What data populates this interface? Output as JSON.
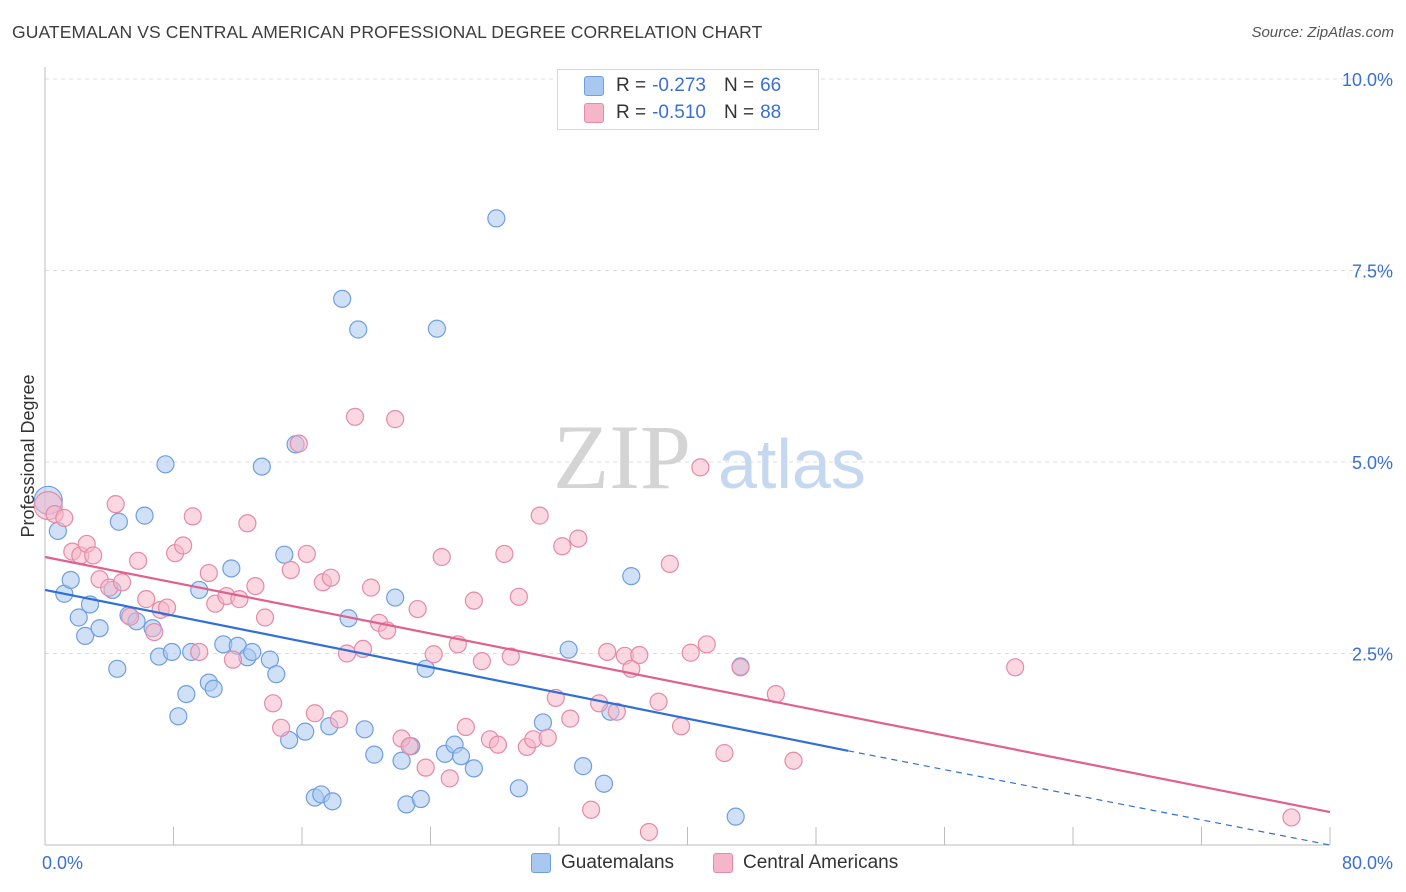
{
  "header": {
    "title": "GUATEMALAN VS CENTRAL AMERICAN PROFESSIONAL DEGREE CORRELATION CHART",
    "source": "Source: ZipAtlas.com"
  },
  "watermark": {
    "part1": "ZIP",
    "part2": "atlas"
  },
  "legend": {
    "rows": [
      {
        "r_label": "R =",
        "r_value": "-0.273",
        "n_label": "N =",
        "n_value": "66"
      },
      {
        "r_label": "R =",
        "r_value": "-0.510",
        "n_label": "N =",
        "n_value": "88"
      }
    ]
  },
  "bottom_legend": {
    "items": [
      "Guatemalans",
      "Central Americans"
    ]
  },
  "colors": {
    "blue_fill": "#a9c8f0",
    "blue_stroke": "#6f9fe0",
    "blue_line": "#2f6fd6",
    "pink_fill": "#f5b6c9",
    "pink_stroke": "#e58aa8",
    "pink_line": "#e0608e",
    "tick_label": "#3a6fd8",
    "grid": "#dcdcdc"
  },
  "chart_data": {
    "type": "scatter",
    "title": "GUATEMALAN VS CENTRAL AMERICAN PROFESSIONAL DEGREE CORRELATION CHART",
    "xlabel": "",
    "ylabel": "Professional Degree",
    "xlim": [
      0,
      80
    ],
    "ylim": [
      0,
      10
    ],
    "x_tick_labels": [
      "0.0%",
      "80.0%"
    ],
    "y_ticks": [
      2.5,
      5.0,
      7.5,
      10.0
    ],
    "y_tick_labels": [
      "2.5%",
      "5.0%",
      "7.5%",
      "10.0%"
    ],
    "grid": true,
    "legend_position": "top-center",
    "series": [
      {
        "name": "Guatemalans",
        "r": -0.273,
        "n": 66,
        "trend": {
          "x0": 0,
          "y0": 3.33,
          "x1": 50,
          "y1": 1.23,
          "dashed_to": 80,
          "dashed_y": 0.0
        },
        "points": [
          [
            0.2,
            4.5
          ],
          [
            0.8,
            4.1
          ],
          [
            1.2,
            3.28
          ],
          [
            1.6,
            3.46
          ],
          [
            2.1,
            2.97
          ],
          [
            2.5,
            2.73
          ],
          [
            2.8,
            3.14
          ],
          [
            3.4,
            2.83
          ],
          [
            4.2,
            3.33
          ],
          [
            4.5,
            2.3
          ],
          [
            4.6,
            4.22
          ],
          [
            5.2,
            3.0
          ],
          [
            5.7,
            2.92
          ],
          [
            6.2,
            4.3
          ],
          [
            6.7,
            2.83
          ],
          [
            7.1,
            2.46
          ],
          [
            7.5,
            4.97
          ],
          [
            7.9,
            2.52
          ],
          [
            8.3,
            1.68
          ],
          [
            8.8,
            1.97
          ],
          [
            9.1,
            2.52
          ],
          [
            9.6,
            3.33
          ],
          [
            10.2,
            2.12
          ],
          [
            10.5,
            2.04
          ],
          [
            11.1,
            2.62
          ],
          [
            11.6,
            3.61
          ],
          [
            12.0,
            2.6
          ],
          [
            12.6,
            2.45
          ],
          [
            12.9,
            2.52
          ],
          [
            13.5,
            4.94
          ],
          [
            14.0,
            2.42
          ],
          [
            14.4,
            2.23
          ],
          [
            14.9,
            3.79
          ],
          [
            15.2,
            1.37
          ],
          [
            15.6,
            5.23
          ],
          [
            16.2,
            1.48
          ],
          [
            16.8,
            0.62
          ],
          [
            17.2,
            0.66
          ],
          [
            17.7,
            1.55
          ],
          [
            17.9,
            0.57
          ],
          [
            18.5,
            7.13
          ],
          [
            18.9,
            2.96
          ],
          [
            19.5,
            6.73
          ],
          [
            19.9,
            1.51
          ],
          [
            20.5,
            1.18
          ],
          [
            21.8,
            3.23
          ],
          [
            22.2,
            1.1
          ],
          [
            22.5,
            0.53
          ],
          [
            22.8,
            1.29
          ],
          [
            23.4,
            0.6
          ],
          [
            23.7,
            2.3
          ],
          [
            24.4,
            6.74
          ],
          [
            24.9,
            1.19
          ],
          [
            25.5,
            1.31
          ],
          [
            25.9,
            1.16
          ],
          [
            26.7,
            1.0
          ],
          [
            28.1,
            8.18
          ],
          [
            29.5,
            0.74
          ],
          [
            31.0,
            1.6
          ],
          [
            32.6,
            2.55
          ],
          [
            33.5,
            1.03
          ],
          [
            34.8,
            0.8
          ],
          [
            35.2,
            1.74
          ],
          [
            36.5,
            3.51
          ],
          [
            43.0,
            0.37
          ],
          [
            43.3,
            2.33
          ]
        ]
      },
      {
        "name": "Central Americans",
        "r": -0.51,
        "n": 88,
        "trend": {
          "x0": 0,
          "y0": 3.76,
          "x1": 80,
          "y1": 0.43
        },
        "points": [
          [
            0.2,
            4.43
          ],
          [
            0.6,
            4.32
          ],
          [
            1.2,
            4.27
          ],
          [
            1.7,
            3.83
          ],
          [
            2.2,
            3.78
          ],
          [
            2.6,
            3.93
          ],
          [
            3.0,
            3.78
          ],
          [
            3.4,
            3.47
          ],
          [
            4.0,
            3.36
          ],
          [
            4.4,
            4.45
          ],
          [
            4.8,
            3.43
          ],
          [
            5.3,
            2.98
          ],
          [
            5.8,
            3.71
          ],
          [
            6.3,
            3.21
          ],
          [
            6.8,
            2.78
          ],
          [
            7.2,
            3.07
          ],
          [
            7.6,
            3.1
          ],
          [
            8.1,
            3.81
          ],
          [
            8.6,
            3.91
          ],
          [
            9.2,
            4.29
          ],
          [
            9.6,
            2.52
          ],
          [
            10.2,
            3.55
          ],
          [
            10.6,
            3.15
          ],
          [
            11.3,
            3.25
          ],
          [
            11.7,
            2.42
          ],
          [
            12.1,
            3.21
          ],
          [
            12.6,
            4.2
          ],
          [
            13.1,
            3.38
          ],
          [
            13.7,
            2.97
          ],
          [
            14.2,
            1.85
          ],
          [
            14.7,
            1.53
          ],
          [
            15.3,
            3.59
          ],
          [
            15.8,
            5.24
          ],
          [
            16.3,
            3.8
          ],
          [
            16.8,
            1.72
          ],
          [
            17.3,
            3.43
          ],
          [
            17.8,
            3.49
          ],
          [
            18.3,
            1.64
          ],
          [
            18.8,
            2.5
          ],
          [
            19.3,
            5.59
          ],
          [
            19.8,
            2.56
          ],
          [
            20.3,
            3.36
          ],
          [
            20.8,
            2.9
          ],
          [
            21.3,
            2.8
          ],
          [
            21.8,
            5.56
          ],
          [
            22.2,
            1.39
          ],
          [
            22.7,
            1.29
          ],
          [
            23.2,
            3.08
          ],
          [
            23.7,
            1.01
          ],
          [
            24.2,
            2.49
          ],
          [
            24.7,
            3.76
          ],
          [
            25.2,
            0.87
          ],
          [
            25.7,
            2.62
          ],
          [
            26.2,
            1.54
          ],
          [
            26.7,
            3.19
          ],
          [
            27.2,
            2.4
          ],
          [
            27.7,
            1.38
          ],
          [
            28.2,
            1.31
          ],
          [
            28.6,
            3.8
          ],
          [
            29.0,
            2.46
          ],
          [
            29.5,
            3.24
          ],
          [
            30.0,
            1.28
          ],
          [
            30.4,
            1.38
          ],
          [
            30.8,
            4.3
          ],
          [
            31.3,
            1.4
          ],
          [
            31.8,
            1.92
          ],
          [
            32.2,
            3.9
          ],
          [
            32.7,
            1.65
          ],
          [
            33.2,
            4.0
          ],
          [
            34.0,
            0.46
          ],
          [
            34.5,
            1.85
          ],
          [
            35.0,
            2.52
          ],
          [
            35.6,
            1.74
          ],
          [
            36.1,
            2.47
          ],
          [
            36.5,
            2.3
          ],
          [
            37.0,
            2.48
          ],
          [
            37.6,
            0.17
          ],
          [
            38.2,
            1.87
          ],
          [
            38.9,
            3.67
          ],
          [
            39.6,
            1.55
          ],
          [
            40.2,
            2.51
          ],
          [
            40.8,
            4.93
          ],
          [
            41.2,
            2.62
          ],
          [
            42.3,
            1.2
          ],
          [
            43.3,
            2.32
          ],
          [
            45.5,
            1.97
          ],
          [
            46.6,
            1.1
          ],
          [
            60.4,
            2.32
          ],
          [
            77.6,
            0.36
          ]
        ]
      }
    ]
  }
}
